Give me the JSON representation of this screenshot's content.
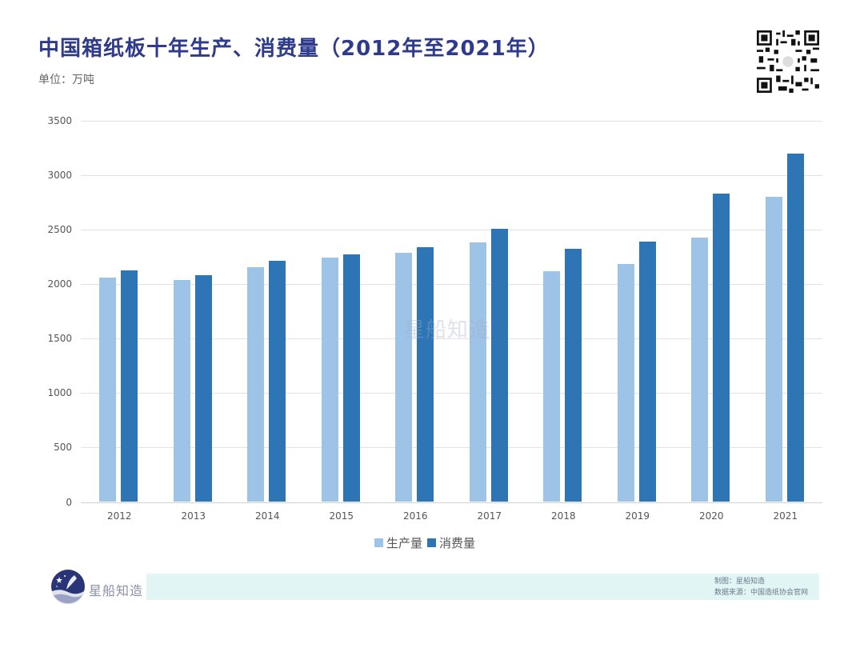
{
  "header": {
    "title": "中国箱纸板十年生产、消费量（2012年至2021年）",
    "unit": "单位：万吨"
  },
  "colors": {
    "production": "#9dc3e6",
    "consumption": "#2e75b6",
    "title": "#2e3a8c",
    "footer_band": "#e2f5f5"
  },
  "watermark": "星船知造",
  "footer": {
    "brand": "星船知造",
    "credit_maker": "制图：星船知造",
    "credit_source": "数据来源：中国造纸协会官网"
  },
  "legend": {
    "production": "生产量",
    "consumption": "消费量"
  },
  "chart_data": {
    "type": "bar",
    "title": "中国箱纸板十年生产、消费量（2012年至2021年）",
    "subtitle": "单位：万吨",
    "xlabel": "",
    "ylabel": "万吨",
    "ylim": [
      0,
      3500
    ],
    "yticks": [
      0,
      500,
      1000,
      1500,
      2000,
      2500,
      3000,
      3500
    ],
    "grid": true,
    "legend_position": "bottom",
    "categories": [
      "2012",
      "2013",
      "2014",
      "2015",
      "2016",
      "2017",
      "2018",
      "2019",
      "2020",
      "2021"
    ],
    "series": [
      {
        "name": "生产量",
        "values": [
          2061,
          2039,
          2154,
          2243,
          2291,
          2380,
          2122,
          2184,
          2426,
          2801
        ]
      },
      {
        "name": "消费量",
        "values": [
          2129,
          2083,
          2218,
          2276,
          2343,
          2505,
          2326,
          2390,
          2829,
          3198
        ]
      }
    ]
  }
}
